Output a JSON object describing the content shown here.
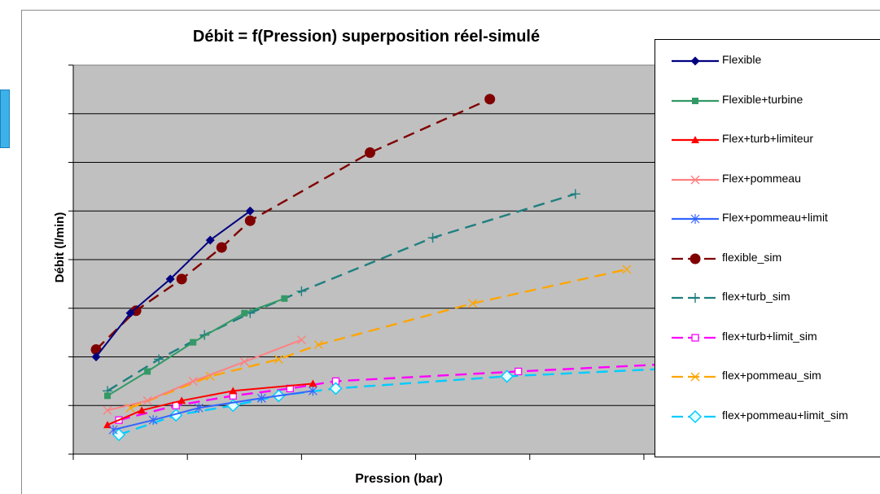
{
  "top_note": "",
  "chart_data": {
    "type": "line",
    "title": "Débit = f(Pression) superposition réel-simulé",
    "xlabel": "Pression (bar)",
    "ylabel": "Débit (l/min)",
    "xlim": [
      0,
      10.5
    ],
    "ylim": [
      0,
      8
    ],
    "x_gridlines": false,
    "y_gridlines": true,
    "x_ticks": [
      0,
      2,
      4,
      6,
      8,
      10
    ],
    "y_ticks": [
      0,
      1,
      2,
      3,
      4,
      5,
      6,
      7,
      8
    ],
    "legend_position": "right",
    "plot_background": "#c0c0c0",
    "series": [
      {
        "name": "Flexible",
        "color": "#000080",
        "style": "solid",
        "marker": "diamond",
        "x": [
          0.4,
          1.0,
          1.7,
          2.4,
          3.1
        ],
        "y": [
          2.0,
          2.9,
          3.6,
          4.4,
          5.0
        ]
      },
      {
        "name": "Flexible+turbine",
        "color": "#339966",
        "style": "solid",
        "marker": "square",
        "x": [
          0.6,
          1.3,
          2.1,
          3.0,
          3.7
        ],
        "y": [
          1.2,
          1.7,
          2.3,
          2.9,
          3.2
        ]
      },
      {
        "name": "Flex+turb+limiteur",
        "color": "#ff0000",
        "style": "solid",
        "marker": "triangle",
        "x": [
          0.6,
          1.2,
          1.9,
          2.8,
          4.2
        ],
        "y": [
          0.6,
          0.9,
          1.1,
          1.3,
          1.45
        ]
      },
      {
        "name": "Flex+pommeau",
        "color": "#ff8080",
        "style": "solid",
        "marker": "cross",
        "x": [
          0.6,
          1.3,
          2.1,
          3.0,
          4.0
        ],
        "y": [
          0.9,
          1.1,
          1.5,
          1.9,
          2.35
        ]
      },
      {
        "name": "Flex+pommeau+limit",
        "color": "#3366ff",
        "style": "solid",
        "marker": "star",
        "x": [
          0.7,
          1.4,
          2.2,
          3.3,
          4.2
        ],
        "y": [
          0.5,
          0.7,
          0.95,
          1.15,
          1.3
        ]
      },
      {
        "name": "flexible_sim",
        "color": "#800000",
        "style": "dash",
        "marker": "circle",
        "x": [
          0.4,
          1.1,
          1.9,
          2.6,
          3.1,
          5.2,
          7.3
        ],
        "y": [
          2.15,
          2.95,
          3.6,
          4.25,
          4.8,
          6.2,
          7.3
        ]
      },
      {
        "name": "flex+turb_sim",
        "color": "#1f7f7f",
        "style": "dash",
        "marker": "plus",
        "x": [
          0.6,
          1.5,
          2.3,
          3.1,
          4.0,
          6.3,
          8.8
        ],
        "y": [
          1.3,
          1.95,
          2.45,
          2.9,
          3.35,
          4.45,
          5.35
        ]
      },
      {
        "name": "flex+turb+limit_sim",
        "color": "#ff00ff",
        "style": "dash",
        "marker": "open-square",
        "x": [
          0.8,
          1.8,
          2.8,
          3.8,
          4.6,
          7.8,
          10.4
        ],
        "y": [
          0.7,
          1.0,
          1.2,
          1.35,
          1.5,
          1.7,
          1.85
        ]
      },
      {
        "name": "flex+pommeau_sim",
        "color": "#ffa500",
        "style": "dash",
        "marker": "x",
        "x": [
          1.0,
          2.4,
          3.6,
          4.3,
          7.0,
          9.7
        ],
        "y": [
          0.95,
          1.6,
          1.95,
          2.25,
          3.1,
          3.8
        ]
      },
      {
        "name": "flex+pommeau+limit_sim",
        "color": "#00ccff",
        "style": "dash",
        "marker": "open-diamond",
        "x": [
          0.8,
          1.8,
          2.8,
          3.6,
          4.6,
          7.6,
          10.3
        ],
        "y": [
          0.4,
          0.8,
          1.0,
          1.2,
          1.35,
          1.6,
          1.75
        ]
      }
    ]
  }
}
